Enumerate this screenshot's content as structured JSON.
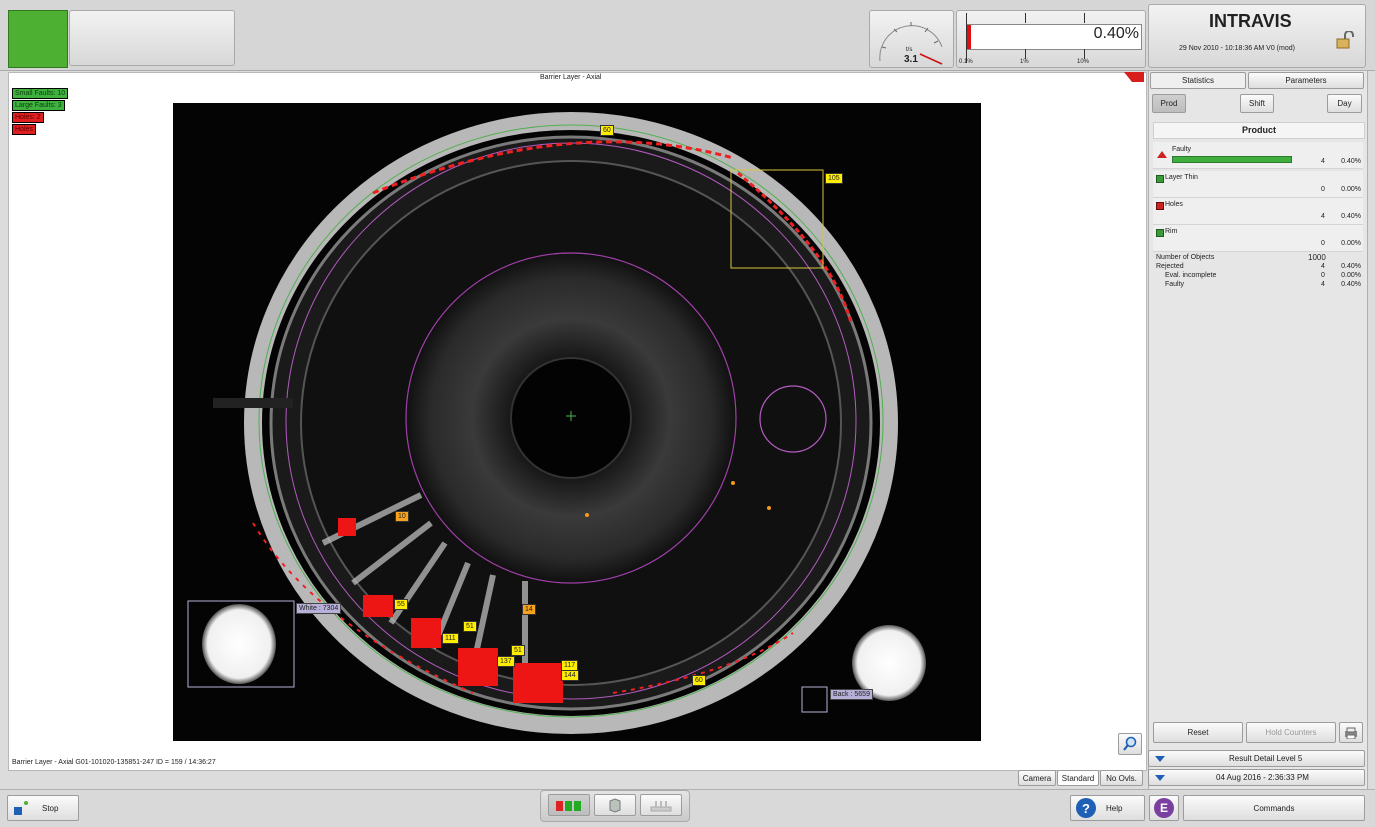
{
  "header": {
    "brand": "INTRAVIS",
    "timestamp": "29 Nov 2010 - 10:18:36 AM  V0 (mod)",
    "gauge": {
      "unit": "t/s",
      "value": "3.1"
    },
    "reject_rate": {
      "percent": "0.40%",
      "ticks": [
        "0.1%",
        "1%",
        "10%"
      ]
    }
  },
  "viewer": {
    "title": "Barrier Layer - Axial",
    "status_line": "Barrier Layer - Axial G01-101020-135851-247  ID = 159 / 14:36:27",
    "legend": [
      {
        "label": "Small Faults: 10",
        "color": "green"
      },
      {
        "label": "Large Faults: 3",
        "color": "green"
      },
      {
        "label": "Holes: 2",
        "color": "red"
      },
      {
        "label": "Holes",
        "color": "red"
      }
    ],
    "markers": {
      "m60top": "60",
      "m105": "105",
      "m10": "10",
      "m55": "55",
      "m51a": "51",
      "m14": "14",
      "m111": "111",
      "m51b": "51",
      "m137": "137",
      "m117": "117",
      "m144": "144",
      "m60bot": "60",
      "white": "White : 7304",
      "back": "Back : 5659"
    },
    "view_tabs": [
      "Camera",
      "Standard",
      "No Ovls."
    ]
  },
  "right_panel": {
    "tabs": [
      "Statistics",
      "Parameters"
    ],
    "period_buttons": [
      "Prod",
      "Shift",
      "Day"
    ],
    "section_title": "Product",
    "rows": [
      {
        "name": "Faulty",
        "count": "4",
        "pct": "0.40%",
        "color": "#cc2222"
      },
      {
        "name": "Layer Thin",
        "count": "0",
        "pct": "0.00%",
        "color": "#3a9a3a"
      },
      {
        "name": "Holes",
        "count": "4",
        "pct": "0.40%",
        "color": "#cc2222"
      },
      {
        "name": "Rim",
        "count": "0",
        "pct": "0.00%",
        "color": "#3a9a3a"
      }
    ],
    "summary": [
      {
        "label": "Number of Objects",
        "count": "1000",
        "pct": ""
      },
      {
        "label": "Rejected",
        "count": "4",
        "pct": "0.40%"
      },
      {
        "label": "Eval. incomplete",
        "count": "0",
        "pct": "0.00%"
      },
      {
        "label": "Faulty",
        "count": "4",
        "pct": "0.40%"
      }
    ],
    "reset": "Reset",
    "hold": "Hold Counters",
    "result_detail": "Result Detail Level 5",
    "date": "04 Aug 2016 - 2:36:33 PM"
  },
  "footer": {
    "stop": "Stop",
    "help": "Help",
    "commands": "Commands",
    "e_badge": "E"
  },
  "colors": {
    "status_ok": "#4db033",
    "reject_red": "#dd1111",
    "accent_blue": "#1f5fb5",
    "badge_purple": "#7b3fa0"
  }
}
